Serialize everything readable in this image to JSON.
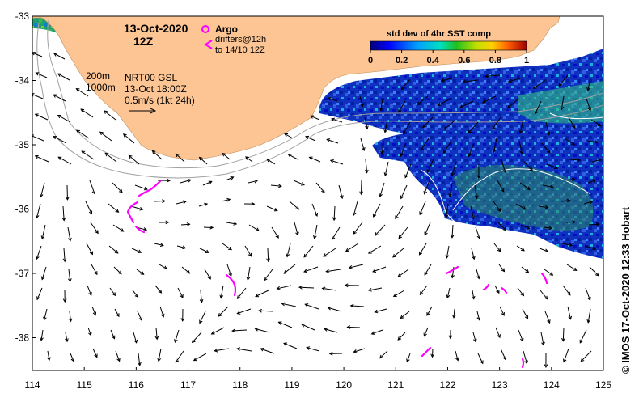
{
  "map": {
    "date_title": "13-Oct-2020",
    "time_title": "12Z",
    "argo_label": "Argo",
    "drifter_label_1": "drifters@12h",
    "drifter_label_2": "to 14/10 12Z",
    "depth_200": "200m",
    "depth_1000": "1000m",
    "product_line_1": "NRT00 GSL",
    "product_line_2": "13-Oct 18:00Z",
    "scale_label": "0.5m/s (1kt 24h)",
    "credit": "© IMOS 17-Oct-2020 12:33 Hobart",
    "x_ticks": [
      "114",
      "115",
      "116",
      "117",
      "118",
      "119",
      "120",
      "121",
      "122",
      "123",
      "124",
      "125"
    ],
    "y_ticks": [
      "-33",
      "-34",
      "-35",
      "-36",
      "-37",
      "-38"
    ],
    "colorbar": {
      "title": "std dev of 4hr SST comp",
      "ticks": [
        "0",
        "0.2",
        "0.4",
        "0.6",
        "0.8",
        "1"
      ]
    }
  },
  "colors": {
    "land": "#fcc593",
    "argo": "#ff00ff",
    "arrow": "#000000",
    "isobath": "#a0a0a0"
  }
}
